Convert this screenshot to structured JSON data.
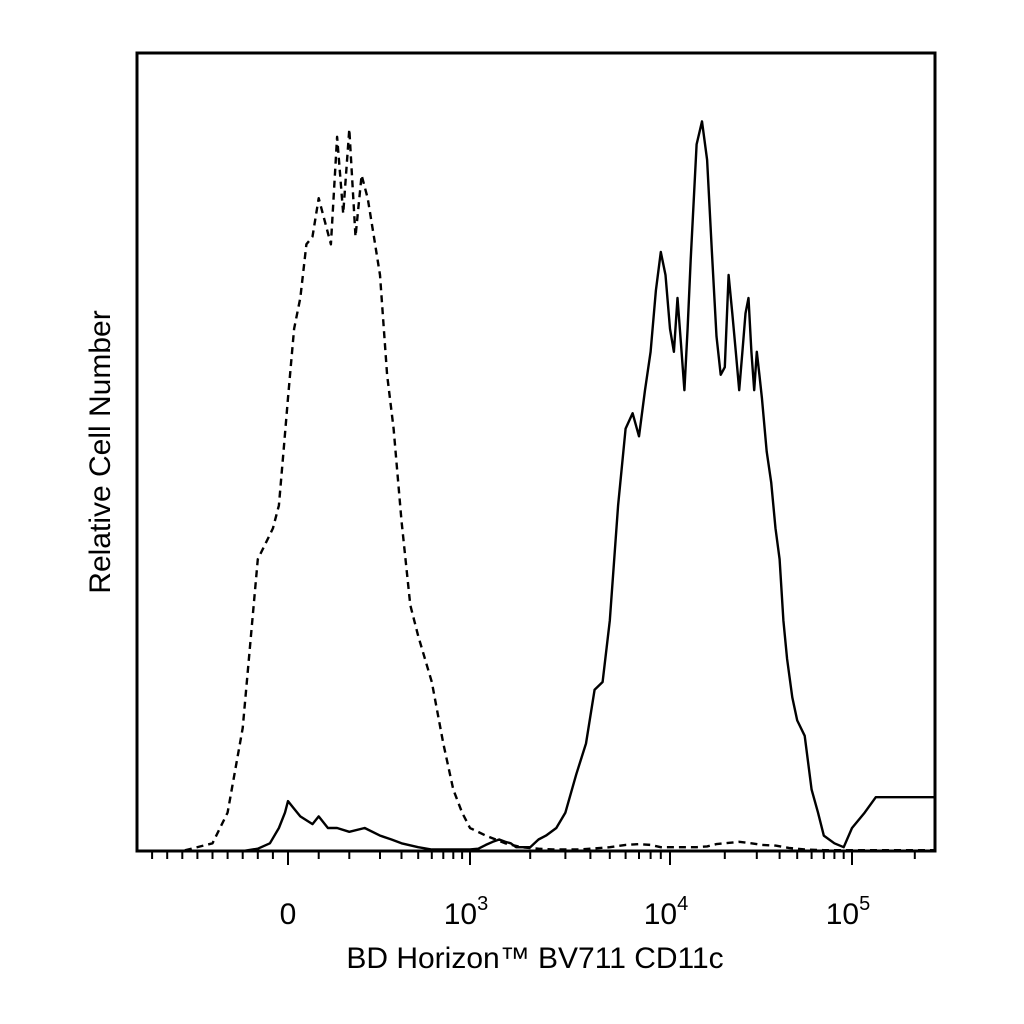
{
  "chart_data": {
    "type": "line",
    "title": "",
    "xlabel": "BD Horizon™ BV711 CD11c",
    "ylabel": "Relative Cell Number",
    "x_scale": "biexponential",
    "xlim": [
      -1000,
      250000
    ],
    "ylim": [
      0,
      100
    ],
    "grid": false,
    "legend": "none",
    "x_ticks": [
      {
        "value": 0,
        "base": "0",
        "exp": ""
      },
      {
        "value": 1000,
        "base": "10",
        "exp": "3"
      },
      {
        "value": 10000,
        "base": "10",
        "exp": "4"
      },
      {
        "value": 100000,
        "base": "10",
        "exp": "5"
      }
    ],
    "series": [
      {
        "style": "dashed",
        "color": "#000000",
        "x": [
          -1000,
          -700,
          -500,
          -400,
          -300,
          -200,
          -150,
          -100,
          -60,
          -30,
          0,
          20,
          40,
          60,
          80,
          100,
          120,
          140,
          160,
          180,
          200,
          220,
          240,
          260,
          280,
          300,
          330,
          360,
          400,
          450,
          500,
          600,
          700,
          800,
          900,
          1000,
          1200,
          1500,
          1800,
          2200,
          2600,
          3000,
          3500,
          4000,
          5000,
          6000,
          7000,
          8000,
          9000,
          10000,
          12000,
          14000,
          16000,
          18000,
          20000,
          24000,
          28000,
          32000,
          38000,
          45000,
          55000,
          70000,
          90000,
          120000,
          160000,
          200000,
          250000
        ],
        "y": [
          0,
          0,
          1,
          5,
          16,
          38,
          40,
          42,
          45,
          52,
          59,
          68,
          72,
          79,
          80,
          85,
          82,
          79,
          93,
          83,
          94,
          80,
          88,
          85,
          80,
          75,
          62,
          55,
          43,
          32,
          28,
          22,
          14,
          8,
          5,
          3,
          2,
          1,
          0.5,
          0.3,
          0.2,
          0.2,
          0.2,
          0.3,
          0.5,
          0.8,
          0.9,
          0.8,
          0.5,
          0.5,
          0.5,
          0.5,
          0.6,
          0.9,
          1.0,
          1.2,
          1.0,
          0.8,
          0.7,
          0.4,
          0.2,
          0.1,
          0.1,
          0.1,
          0.1,
          0.1,
          0.1
        ]
      },
      {
        "style": "solid",
        "color": "#000000",
        "x": [
          -1000,
          -700,
          -500,
          -400,
          -300,
          -200,
          -120,
          -60,
          -20,
          0,
          20,
          40,
          60,
          80,
          100,
          130,
          160,
          200,
          250,
          300,
          350,
          400,
          500,
          600,
          700,
          800,
          900,
          1000,
          1100,
          1200,
          1300,
          1400,
          1500,
          1600,
          1700,
          1800,
          2000,
          2200,
          2400,
          2700,
          3000,
          3400,
          3800,
          4200,
          4600,
          5000,
          5500,
          6000,
          6500,
          7000,
          7500,
          8000,
          8500,
          9000,
          9500,
          10000,
          10500,
          11000,
          11500,
          12000,
          12500,
          13000,
          14000,
          15000,
          16000,
          17000,
          18000,
          19000,
          20000,
          21000,
          22000,
          23000,
          24000,
          25000,
          26000,
          27000,
          28000,
          29000,
          30000,
          31000,
          32000,
          34000,
          36000,
          38000,
          40000,
          42000,
          44000,
          47000,
          50000,
          55000,
          60000,
          65000,
          70000,
          80000,
          90000,
          100000,
          115000,
          130000,
          150000,
          170000,
          190000,
          220000,
          250000
        ],
        "y": [
          0,
          0,
          0,
          0,
          0,
          0.3,
          1,
          3,
          5,
          6.5,
          5.5,
          4.5,
          4,
          3.5,
          4.5,
          3,
          3,
          2.5,
          3,
          2,
          1.5,
          1,
          0.5,
          0.2,
          0.2,
          0.2,
          0.2,
          0.2,
          0.3,
          0.8,
          1.2,
          1.5,
          1.2,
          1,
          0.5,
          0.5,
          0.5,
          1.5,
          2,
          3,
          5,
          10,
          14,
          21,
          22,
          30,
          45,
          55,
          57,
          54,
          60,
          65,
          73,
          78,
          75,
          68,
          65,
          72,
          66,
          60,
          68,
          77,
          92,
          95,
          90,
          78,
          67,
          62,
          63,
          75,
          70,
          65,
          60,
          65,
          70,
          72,
          65,
          60,
          65,
          62,
          59,
          52,
          48,
          42,
          38,
          30,
          25,
          20,
          17,
          15,
          8,
          5,
          2,
          1,
          0.5,
          3,
          5,
          7,
          7,
          7,
          7,
          7,
          7
        ]
      }
    ]
  }
}
